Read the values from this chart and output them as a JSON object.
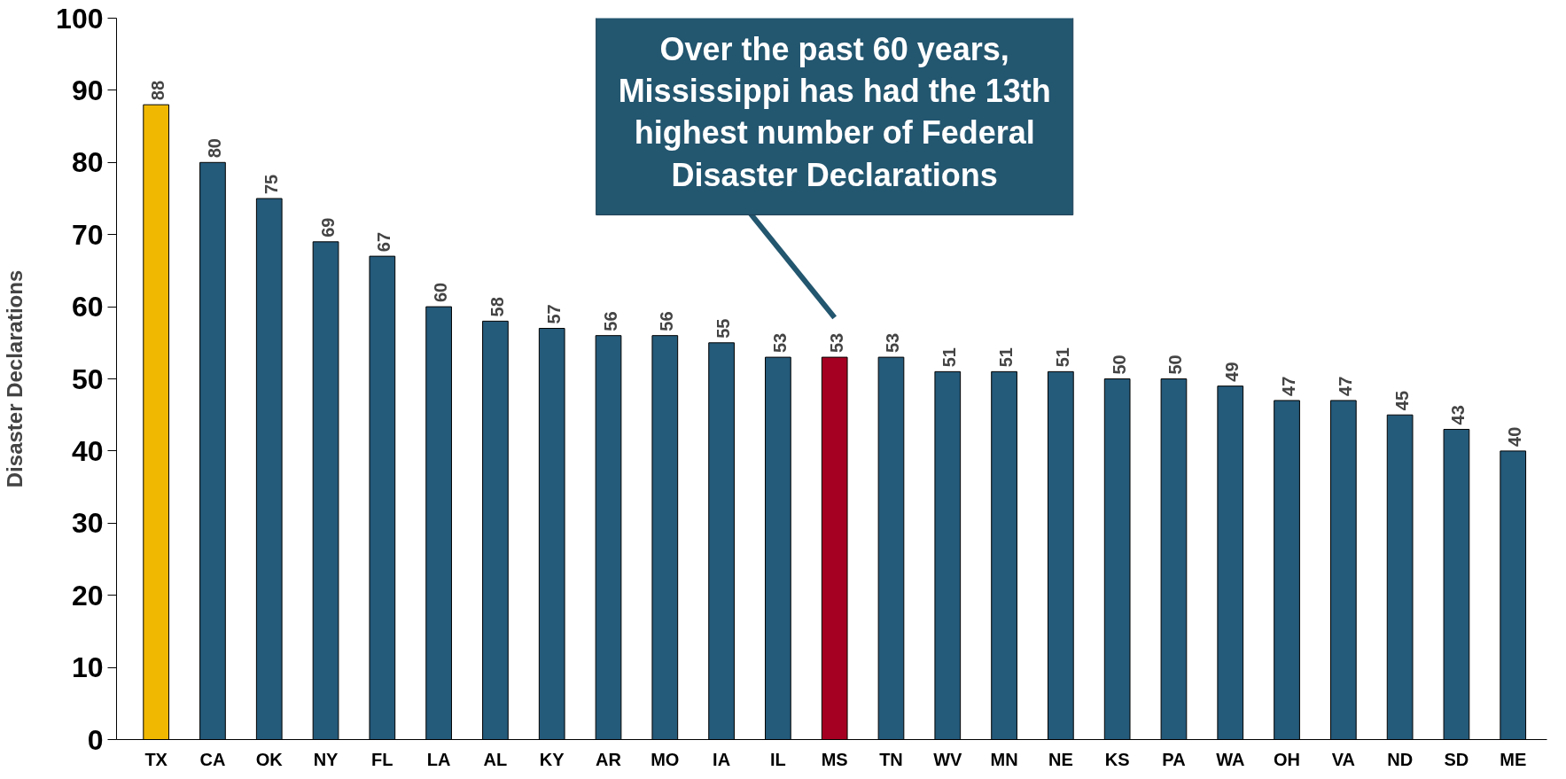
{
  "chart_data": {
    "type": "bar",
    "ylabel": "Disaster Declarations",
    "categories": [
      "TX",
      "CA",
      "OK",
      "NY",
      "FL",
      "LA",
      "AL",
      "KY",
      "AR",
      "MO",
      "IA",
      "IL",
      "MS",
      "TN",
      "WV",
      "MN",
      "NE",
      "KS",
      "PA",
      "WA",
      "OH",
      "VA",
      "ND",
      "SD",
      "ME"
    ],
    "values": [
      88,
      80,
      75,
      69,
      67,
      60,
      58,
      57,
      56,
      56,
      55,
      53,
      53,
      53,
      51,
      51,
      51,
      50,
      50,
      49,
      47,
      47,
      45,
      43,
      40
    ],
    "colors": [
      "#f0b800",
      "#245a7a",
      "#245a7a",
      "#245a7a",
      "#245a7a",
      "#245a7a",
      "#245a7a",
      "#245a7a",
      "#245a7a",
      "#245a7a",
      "#245a7a",
      "#245a7a",
      "#a50021",
      "#245a7a",
      "#245a7a",
      "#245a7a",
      "#245a7a",
      "#245a7a",
      "#245a7a",
      "#245a7a",
      "#245a7a",
      "#245a7a",
      "#245a7a",
      "#245a7a",
      "#245a7a"
    ],
    "ylim": [
      0,
      100
    ],
    "yticks": [
      0,
      10,
      20,
      30,
      40,
      50,
      60,
      70,
      80,
      90,
      100
    ],
    "data_labels": true,
    "grid": false,
    "annotations": [
      "Over the past 60 years, Mississippi has had the 13th highest number of Federal Disaster Declarations"
    ]
  }
}
